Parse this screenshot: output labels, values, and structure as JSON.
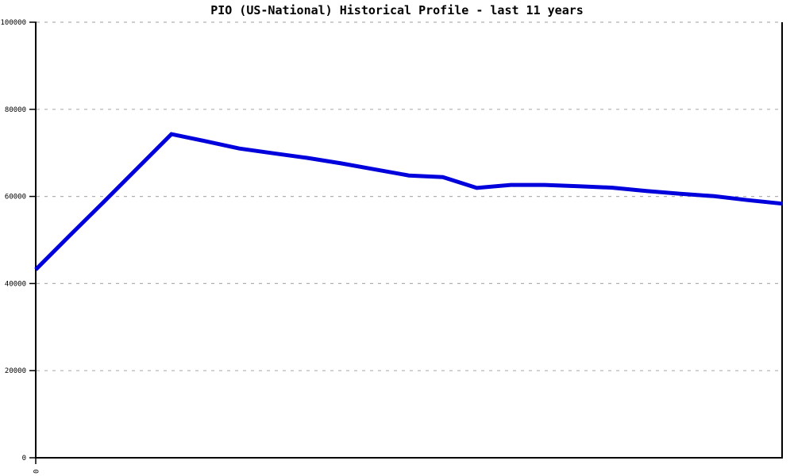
{
  "chart_data": {
    "type": "line",
    "title": "PIO (US-National) Historical Profile - last 11 years",
    "xlabel": "",
    "ylabel": "",
    "xlim": [
      0,
      11
    ],
    "ylim": [
      0,
      100000
    ],
    "y_ticks": [
      0,
      20000,
      40000,
      60000,
      80000,
      100000
    ],
    "y_tick_labels": [
      "0",
      "20000",
      "40000",
      "60000",
      "80000",
      "100000"
    ],
    "x_ticks": [
      0
    ],
    "x_tick_labels": [
      "0"
    ],
    "grid": "dashed-horizontal",
    "legend": "none",
    "colors": {
      "line": "#0000dd",
      "axis": "#000000",
      "gridline": "#b0b0b0",
      "background": "#ffffff"
    },
    "line_width": 5,
    "series": [
      {
        "name": "PIO (US-National)",
        "x": [
          0,
          0.5,
          1,
          1.5,
          2,
          2.5,
          3,
          3.5,
          4,
          4.5,
          5,
          5.5,
          6,
          6.5,
          7,
          7.5,
          8,
          8.5,
          9,
          9.5,
          10,
          10.5,
          11
        ],
        "values": [
          43200,
          51000,
          58700,
          66500,
          74300,
          72700,
          71000,
          69900,
          68850,
          67600,
          66200,
          64800,
          64450,
          61950,
          62650,
          62650,
          62350,
          62000,
          61250,
          60600,
          60050,
          59150,
          58350
        ]
      }
    ]
  }
}
